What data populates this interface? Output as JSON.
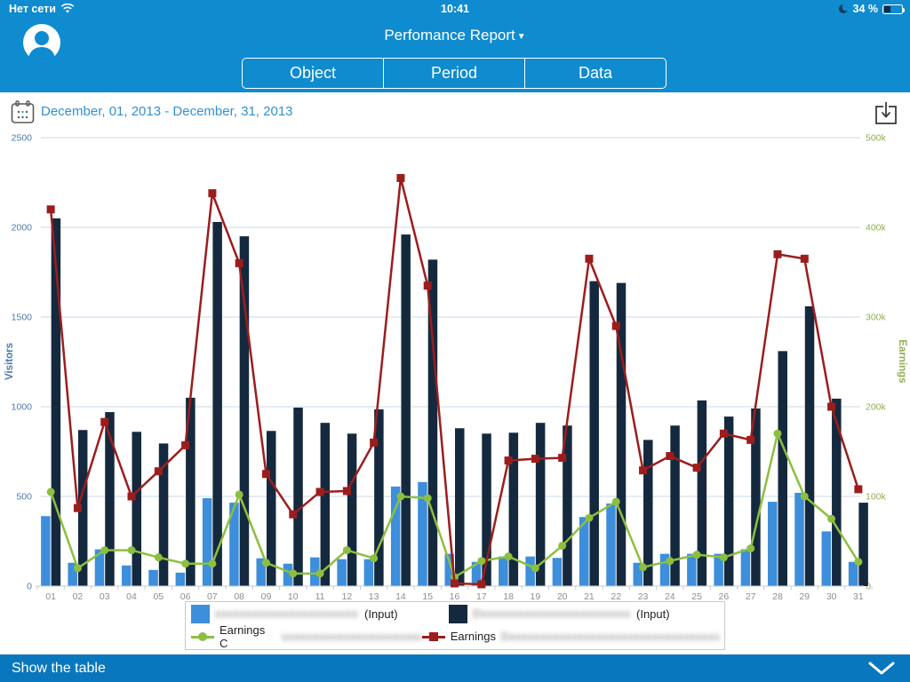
{
  "status_bar": {
    "carrier": "Нет сети",
    "time": "10:41",
    "battery_percent": "34 %"
  },
  "header": {
    "title": "Perfomance Report",
    "title_arrow": "▼",
    "tabs": [
      {
        "label": "Object"
      },
      {
        "label": "Period"
      },
      {
        "label": "Data"
      }
    ]
  },
  "toolbar": {
    "date_range": "December, 01, 2013 - December, 31, 2013"
  },
  "footer": {
    "label": "Show the table"
  },
  "colors": {
    "header_blue": "#0F8BD0",
    "footer_blue": "#0977BD",
    "bar_light_blue": "#3D8EDB",
    "bar_navy": "#15293E",
    "line_green": "#8CBF3F",
    "line_red": "#9C1D1D",
    "gridline": "#C8D8E8",
    "axis_line": "#C5CCD4",
    "left_axis_text": "#4B79AB",
    "right_axis_text": "#90AE54",
    "x_axis_text": "#8E8E8E"
  },
  "legend": {
    "items": [
      {
        "swatch": "square",
        "color": "#3D8EDB",
        "redacted": "xxxxxxxxxxxxxxxxxxxxxxxxxxxx",
        "suffix": "(Input)"
      },
      {
        "swatch": "square",
        "color": "#15293E",
        "redacted": "Dxxxxxxxxxxxxxxxxxxxxxxxxxxxxx",
        "suffix": "(Input)"
      },
      {
        "swatch": "line-circle",
        "color": "#8CBF3F",
        "prefix": "Earnings C",
        "redacted": "xxxxxxxxxxxxxxxxxxxxxxxxxx",
        "suffix": ""
      },
      {
        "swatch": "line-square",
        "color": "#9C1D1D",
        "prefix": "Earnings",
        "redacted": "Dxxxxxxxxxxxxxxxxxxxxxxxxxxxxxxxxxxxxxxxxxx",
        "suffix": ""
      }
    ]
  },
  "chart_data": {
    "type": "bar",
    "subtype": "dual-axis bars + lines",
    "categories": [
      "01",
      "02",
      "03",
      "04",
      "05",
      "06",
      "07",
      "08",
      "09",
      "10",
      "11",
      "12",
      "13",
      "14",
      "15",
      "16",
      "17",
      "18",
      "19",
      "20",
      "21",
      "22",
      "23",
      "24",
      "25",
      "26",
      "27",
      "28",
      "29",
      "30",
      "31"
    ],
    "series": [
      {
        "name": "Visitors (redacted site) (Input)",
        "type": "bar",
        "axis": "left",
        "color": "#3D8EDB",
        "values": [
          390,
          130,
          205,
          115,
          90,
          75,
          490,
          465,
          155,
          125,
          160,
          150,
          150,
          555,
          580,
          180,
          135,
          165,
          165,
          157,
          385,
          460,
          130,
          180,
          180,
          180,
          205,
          470,
          520,
          305,
          135
        ]
      },
      {
        "name": "Visitors D(redacted site) (Input)",
        "type": "bar",
        "axis": "left",
        "color": "#15293E",
        "values": [
          2050,
          870,
          970,
          860,
          795,
          1050,
          2030,
          1950,
          865,
          995,
          910,
          850,
          985,
          1960,
          1820,
          880,
          850,
          855,
          910,
          895,
          1700,
          1690,
          815,
          895,
          1035,
          945,
          990,
          1310,
          1560,
          1045,
          465
        ]
      },
      {
        "name": "Earnings C(redacted)",
        "type": "line",
        "axis": "right",
        "color": "#8CBF3F",
        "marker": "circle",
        "values": [
          105000,
          20000,
          40000,
          40000,
          32000,
          25000,
          25000,
          102000,
          26000,
          14000,
          14000,
          40000,
          31000,
          100000,
          98000,
          10000,
          28000,
          33000,
          20000,
          45000,
          76000,
          94000,
          21000,
          28000,
          35000,
          32000,
          42000,
          170000,
          100000,
          75000,
          27000
        ]
      },
      {
        "name": "Earnings D(redacted)",
        "type": "line",
        "axis": "right",
        "color": "#9C1D1D",
        "marker": "square",
        "values": [
          420000,
          87000,
          183000,
          100000,
          128000,
          157000,
          438000,
          360000,
          125000,
          80000,
          105000,
          106000,
          160000,
          455000,
          335000,
          3000,
          2000,
          140000,
          142000,
          143000,
          365000,
          290000,
          129000,
          145000,
          132000,
          170000,
          163000,
          370000,
          365000,
          200000,
          108000
        ]
      }
    ],
    "left_axis": {
      "title": "Visitors",
      "min": 0,
      "max": 2500,
      "ticks": [
        0,
        500,
        1000,
        1500,
        2000,
        2500
      ]
    },
    "right_axis": {
      "title": "Earnings",
      "min": 0,
      "max": 500000,
      "tick_labels": [
        "0",
        "100k",
        "200k",
        "300k",
        "400k",
        "500k"
      ]
    },
    "grid": true,
    "legend_position": "bottom"
  }
}
